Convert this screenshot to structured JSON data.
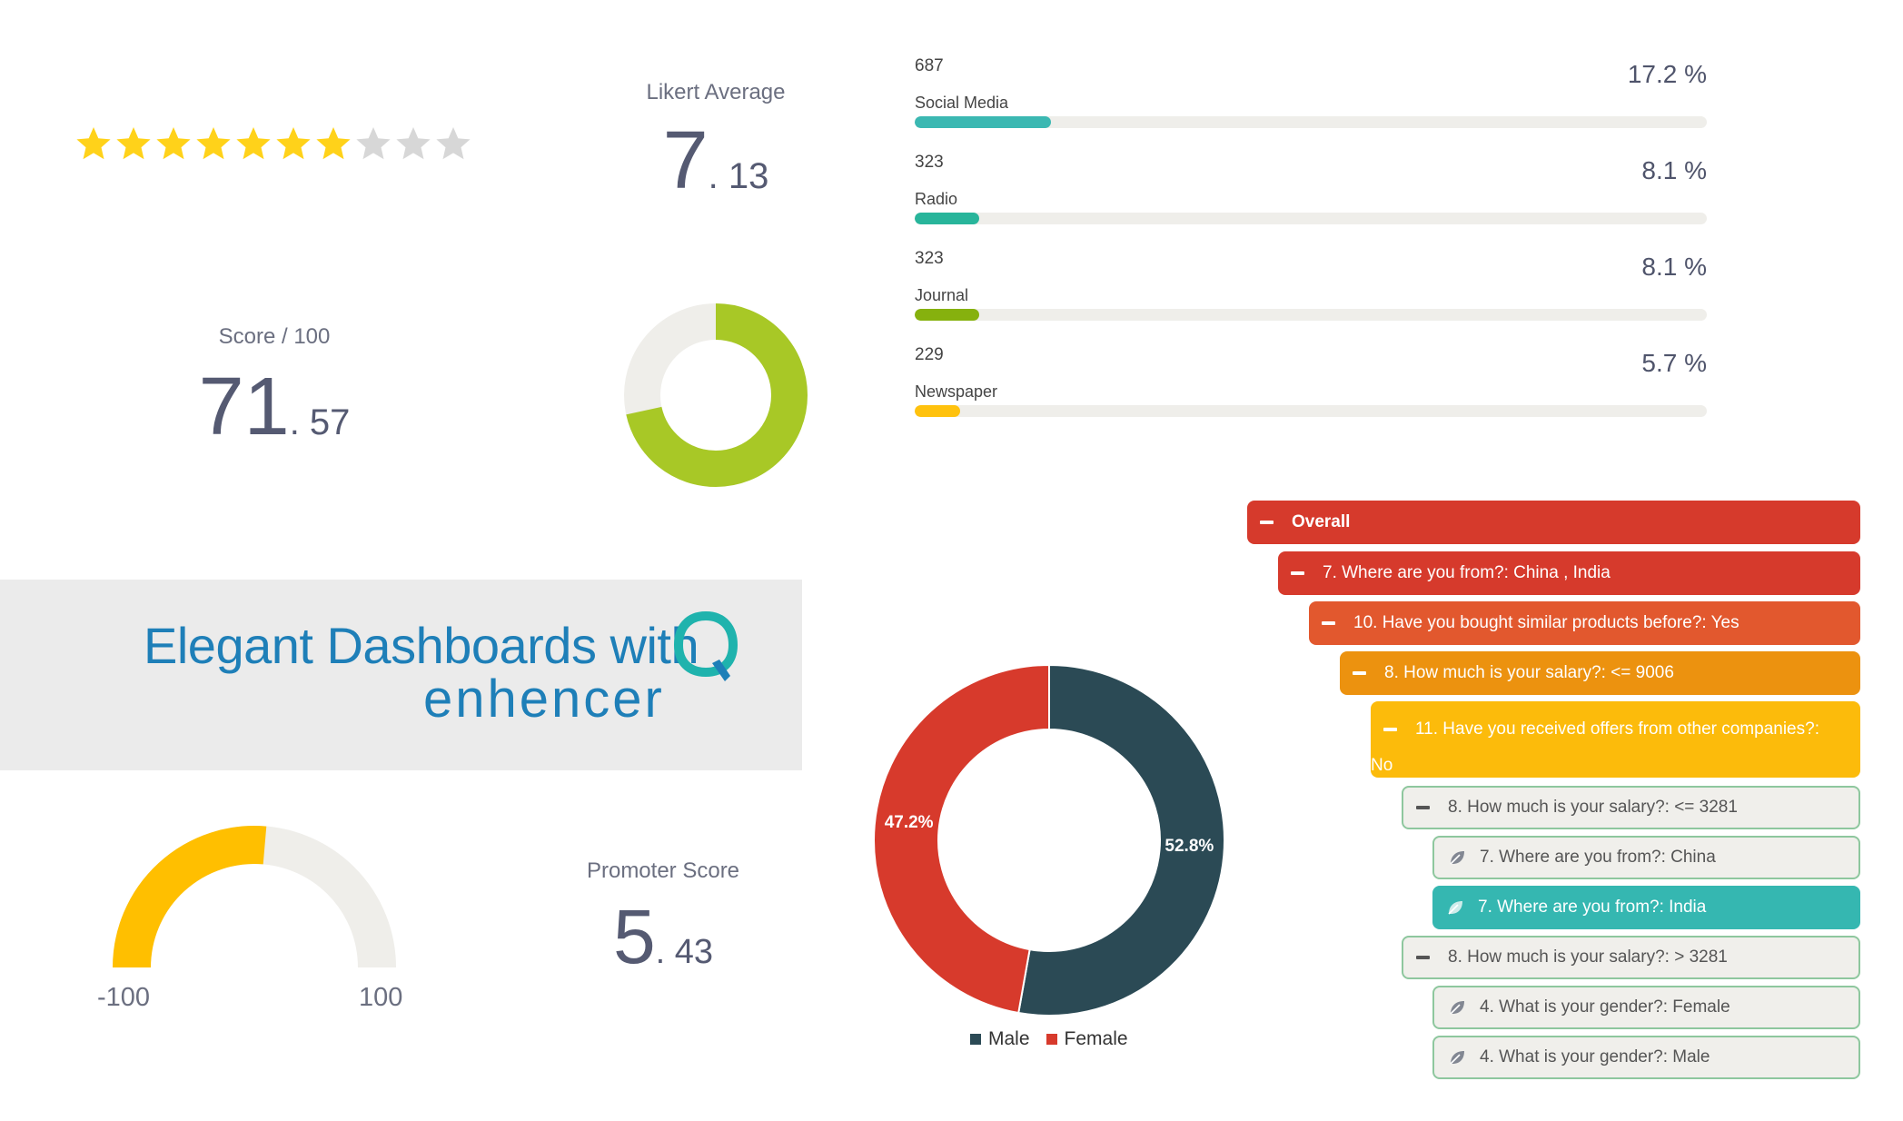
{
  "rating": {
    "filled": 7,
    "total": 10,
    "star_color": "#ffd21a",
    "empty_color": "#d7d7d7"
  },
  "likert": {
    "label": "Likert Average",
    "int": "7",
    "dec": ". 13"
  },
  "score": {
    "label": "Score / 100",
    "int": "71",
    "dec": ". 57",
    "fraction": 0.7157,
    "color": "#a8c826",
    "track": "#efeeea"
  },
  "bars": [
    {
      "count": "687",
      "name": "Social Media",
      "pct": "17.2 %",
      "fraction": 0.172,
      "color": "#3bb8b2"
    },
    {
      "count": "323",
      "name": "Radio",
      "pct": "8.1 %",
      "fraction": 0.081,
      "color": "#28b59b"
    },
    {
      "count": "323",
      "name": "Journal",
      "pct": "8.1 %",
      "fraction": 0.081,
      "color": "#86b10e"
    },
    {
      "count": "229",
      "name": "Newspaper",
      "pct": "5.7 %",
      "fraction": 0.057,
      "color": "#ffc20e"
    }
  ],
  "banner": {
    "title": "Elegant Dashboards with",
    "logo": "enhencer"
  },
  "gauge": {
    "min_label": "-100",
    "max_label": "100",
    "value": 5.43,
    "color": "#ffbf00",
    "track": "#efeeea"
  },
  "promoter": {
    "label": "Promoter Score",
    "int": "5",
    "dec": ". 43"
  },
  "gender_chart": {
    "type": "pie",
    "slices": [
      {
        "name": "Male",
        "value": 52.8,
        "label": "52.8%",
        "color": "#2b4a55"
      },
      {
        "name": "Female",
        "value": 47.2,
        "label": "47.2%",
        "color": "#d73a2c"
      }
    ]
  },
  "tree": [
    {
      "text": "Overall",
      "bold": true,
      "color": "#d63a2c",
      "style": "filled",
      "icon": "minus"
    },
    {
      "text": "7. Where are you from?: China , India",
      "color": "#d63a2c",
      "style": "filled",
      "icon": "minus"
    },
    {
      "text": "10. Have you bought similar products before?: Yes",
      "color": "#e2582e",
      "style": "filled",
      "icon": "minus"
    },
    {
      "text": "8. How much is your salary?: <= 9006",
      "color": "#ec920f",
      "style": "filled",
      "icon": "minus"
    },
    {
      "text": "11. Have you received offers from other companies?:",
      "text2": "No",
      "color": "#fcbb0b",
      "style": "filled",
      "icon": "minus"
    },
    {
      "text": "8. How much is your salary?: <= 3281",
      "style": "outline",
      "icon": "minus"
    },
    {
      "text": "7. Where are you from?: China",
      "style": "outline",
      "icon": "leaf"
    },
    {
      "text": "7. Where are you from?: India",
      "color": "#35b7b1",
      "style": "filled",
      "icon": "leaf"
    },
    {
      "text": "8. How much is your salary?: > 3281",
      "style": "outline",
      "icon": "minus"
    },
    {
      "text": "4. What is your gender?: Female",
      "style": "outline",
      "icon": "leaf"
    },
    {
      "text": "4. What is your gender?: Male",
      "style": "outline",
      "icon": "leaf"
    }
  ]
}
